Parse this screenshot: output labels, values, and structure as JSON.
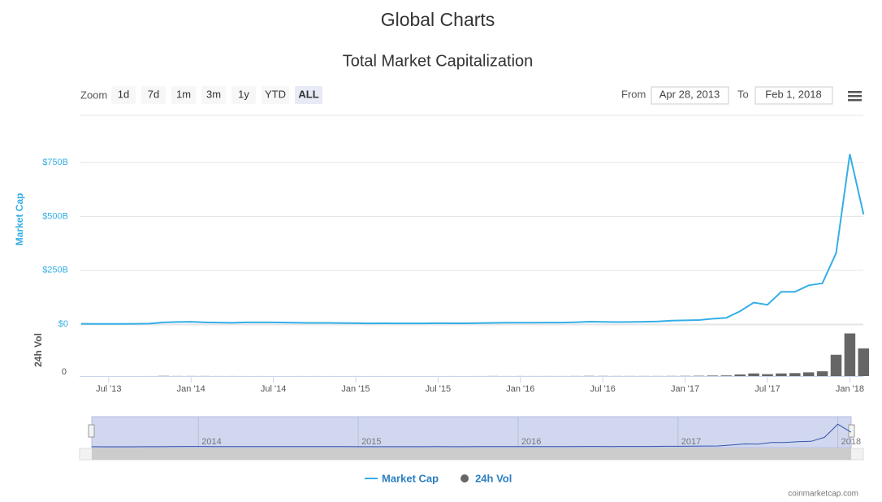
{
  "page_title": "Global Charts",
  "toolbar": {
    "zoom_label": "Zoom",
    "zoom_options": [
      "1d",
      "7d",
      "1m",
      "3m",
      "1y",
      "YTD",
      "ALL"
    ],
    "selected_zoom": "ALL",
    "from_label": "From",
    "from_date": "Apr 28, 2013",
    "to_label": "To",
    "to_date": "Feb 1, 2018"
  },
  "credits": "coinmarketcap.com",
  "chart_data": {
    "type": "line",
    "title": "Total Market Capitalization",
    "y_label": "Market Cap",
    "y2_label": "24h Vol",
    "x": [
      "2013-05",
      "2013-06",
      "2013-07",
      "2013-08",
      "2013-09",
      "2013-10",
      "2013-11",
      "2013-12",
      "2014-01",
      "2014-02",
      "2014-03",
      "2014-04",
      "2014-05",
      "2014-06",
      "2014-07",
      "2014-08",
      "2014-09",
      "2014-10",
      "2014-11",
      "2014-12",
      "2015-01",
      "2015-02",
      "2015-03",
      "2015-04",
      "2015-05",
      "2015-06",
      "2015-07",
      "2015-08",
      "2015-09",
      "2015-10",
      "2015-11",
      "2015-12",
      "2016-01",
      "2016-02",
      "2016-03",
      "2016-04",
      "2016-05",
      "2016-06",
      "2016-07",
      "2016-08",
      "2016-09",
      "2016-10",
      "2016-11",
      "2016-12",
      "2017-01",
      "2017-02",
      "2017-03",
      "2017-04",
      "2017-05",
      "2017-06",
      "2017-07",
      "2017-08",
      "2017-09",
      "2017-10",
      "2017-11",
      "2017-12",
      "2018-01",
      "2018-02"
    ],
    "series": [
      {
        "name": "Market Cap",
        "color": "#35aee6",
        "values": [
          1.5,
          1.3,
          1.1,
          1.3,
          1.6,
          2.2,
          8,
          10,
          11,
          8,
          7,
          6,
          8,
          8,
          8,
          7,
          6,
          5.5,
          5.5,
          5,
          4,
          3.5,
          3.8,
          3.3,
          3.4,
          3.5,
          4.3,
          3.7,
          3.6,
          4.5,
          5.5,
          6.8,
          6.8,
          6.5,
          7,
          7.3,
          8.5,
          11.5,
          10.5,
          9.5,
          10,
          11,
          12.5,
          16,
          17.5,
          19,
          25,
          29,
          60,
          100,
          90,
          150,
          150,
          180,
          190,
          330,
          790,
          510
        ]
      },
      {
        "name": "24h Vol",
        "color": "#666666",
        "axis": "y2",
        "values": [
          0.02,
          0.02,
          0.01,
          0.01,
          0.01,
          0.03,
          0.2,
          0.1,
          0.1,
          0.1,
          0.05,
          0.05,
          0.03,
          0.03,
          0.02,
          0.02,
          0.03,
          0.03,
          0.03,
          0.02,
          0.03,
          0.03,
          0.03,
          0.02,
          0.02,
          0.02,
          0.03,
          0.03,
          0.02,
          0.04,
          0.1,
          0.05,
          0.07,
          0.06,
          0.06,
          0.06,
          0.1,
          0.2,
          0.15,
          0.1,
          0.1,
          0.1,
          0.1,
          0.15,
          0.2,
          0.3,
          0.5,
          0.6,
          1.5,
          2.5,
          1.8,
          2.5,
          2.8,
          3.5,
          4.5,
          20,
          40,
          26
        ]
      }
    ],
    "ylim": [
      0,
      970
    ],
    "yticks": [
      {
        "value": 0,
        "label": "$0"
      },
      {
        "value": 250,
        "label": "$250B"
      },
      {
        "value": 500,
        "label": "$500B"
      },
      {
        "value": 750,
        "label": "$750B"
      }
    ],
    "y2lim": [
      0,
      48
    ],
    "y2ticks": [
      0
    ],
    "xticks": [
      {
        "value": "2013-07",
        "label": "Jul '13"
      },
      {
        "value": "2014-01",
        "label": "Jan '14"
      },
      {
        "value": "2014-07",
        "label": "Jul '14"
      },
      {
        "value": "2015-01",
        "label": "Jan '15"
      },
      {
        "value": "2015-07",
        "label": "Jul '15"
      },
      {
        "value": "2016-01",
        "label": "Jan '16"
      },
      {
        "value": "2016-07",
        "label": "Jul '16"
      },
      {
        "value": "2017-01",
        "label": "Jan '17"
      },
      {
        "value": "2017-07",
        "label": "Jul '17"
      },
      {
        "value": "2018-01",
        "label": "Jan '18"
      }
    ],
    "navigator_ticks": [
      {
        "value": "2014-01",
        "label": "2014"
      },
      {
        "value": "2015-01",
        "label": "2015"
      },
      {
        "value": "2016-01",
        "label": "2016"
      },
      {
        "value": "2017-01",
        "label": "2017"
      },
      {
        "value": "2018-01",
        "label": "2018"
      }
    ],
    "grid": true,
    "legend": "bottom"
  }
}
